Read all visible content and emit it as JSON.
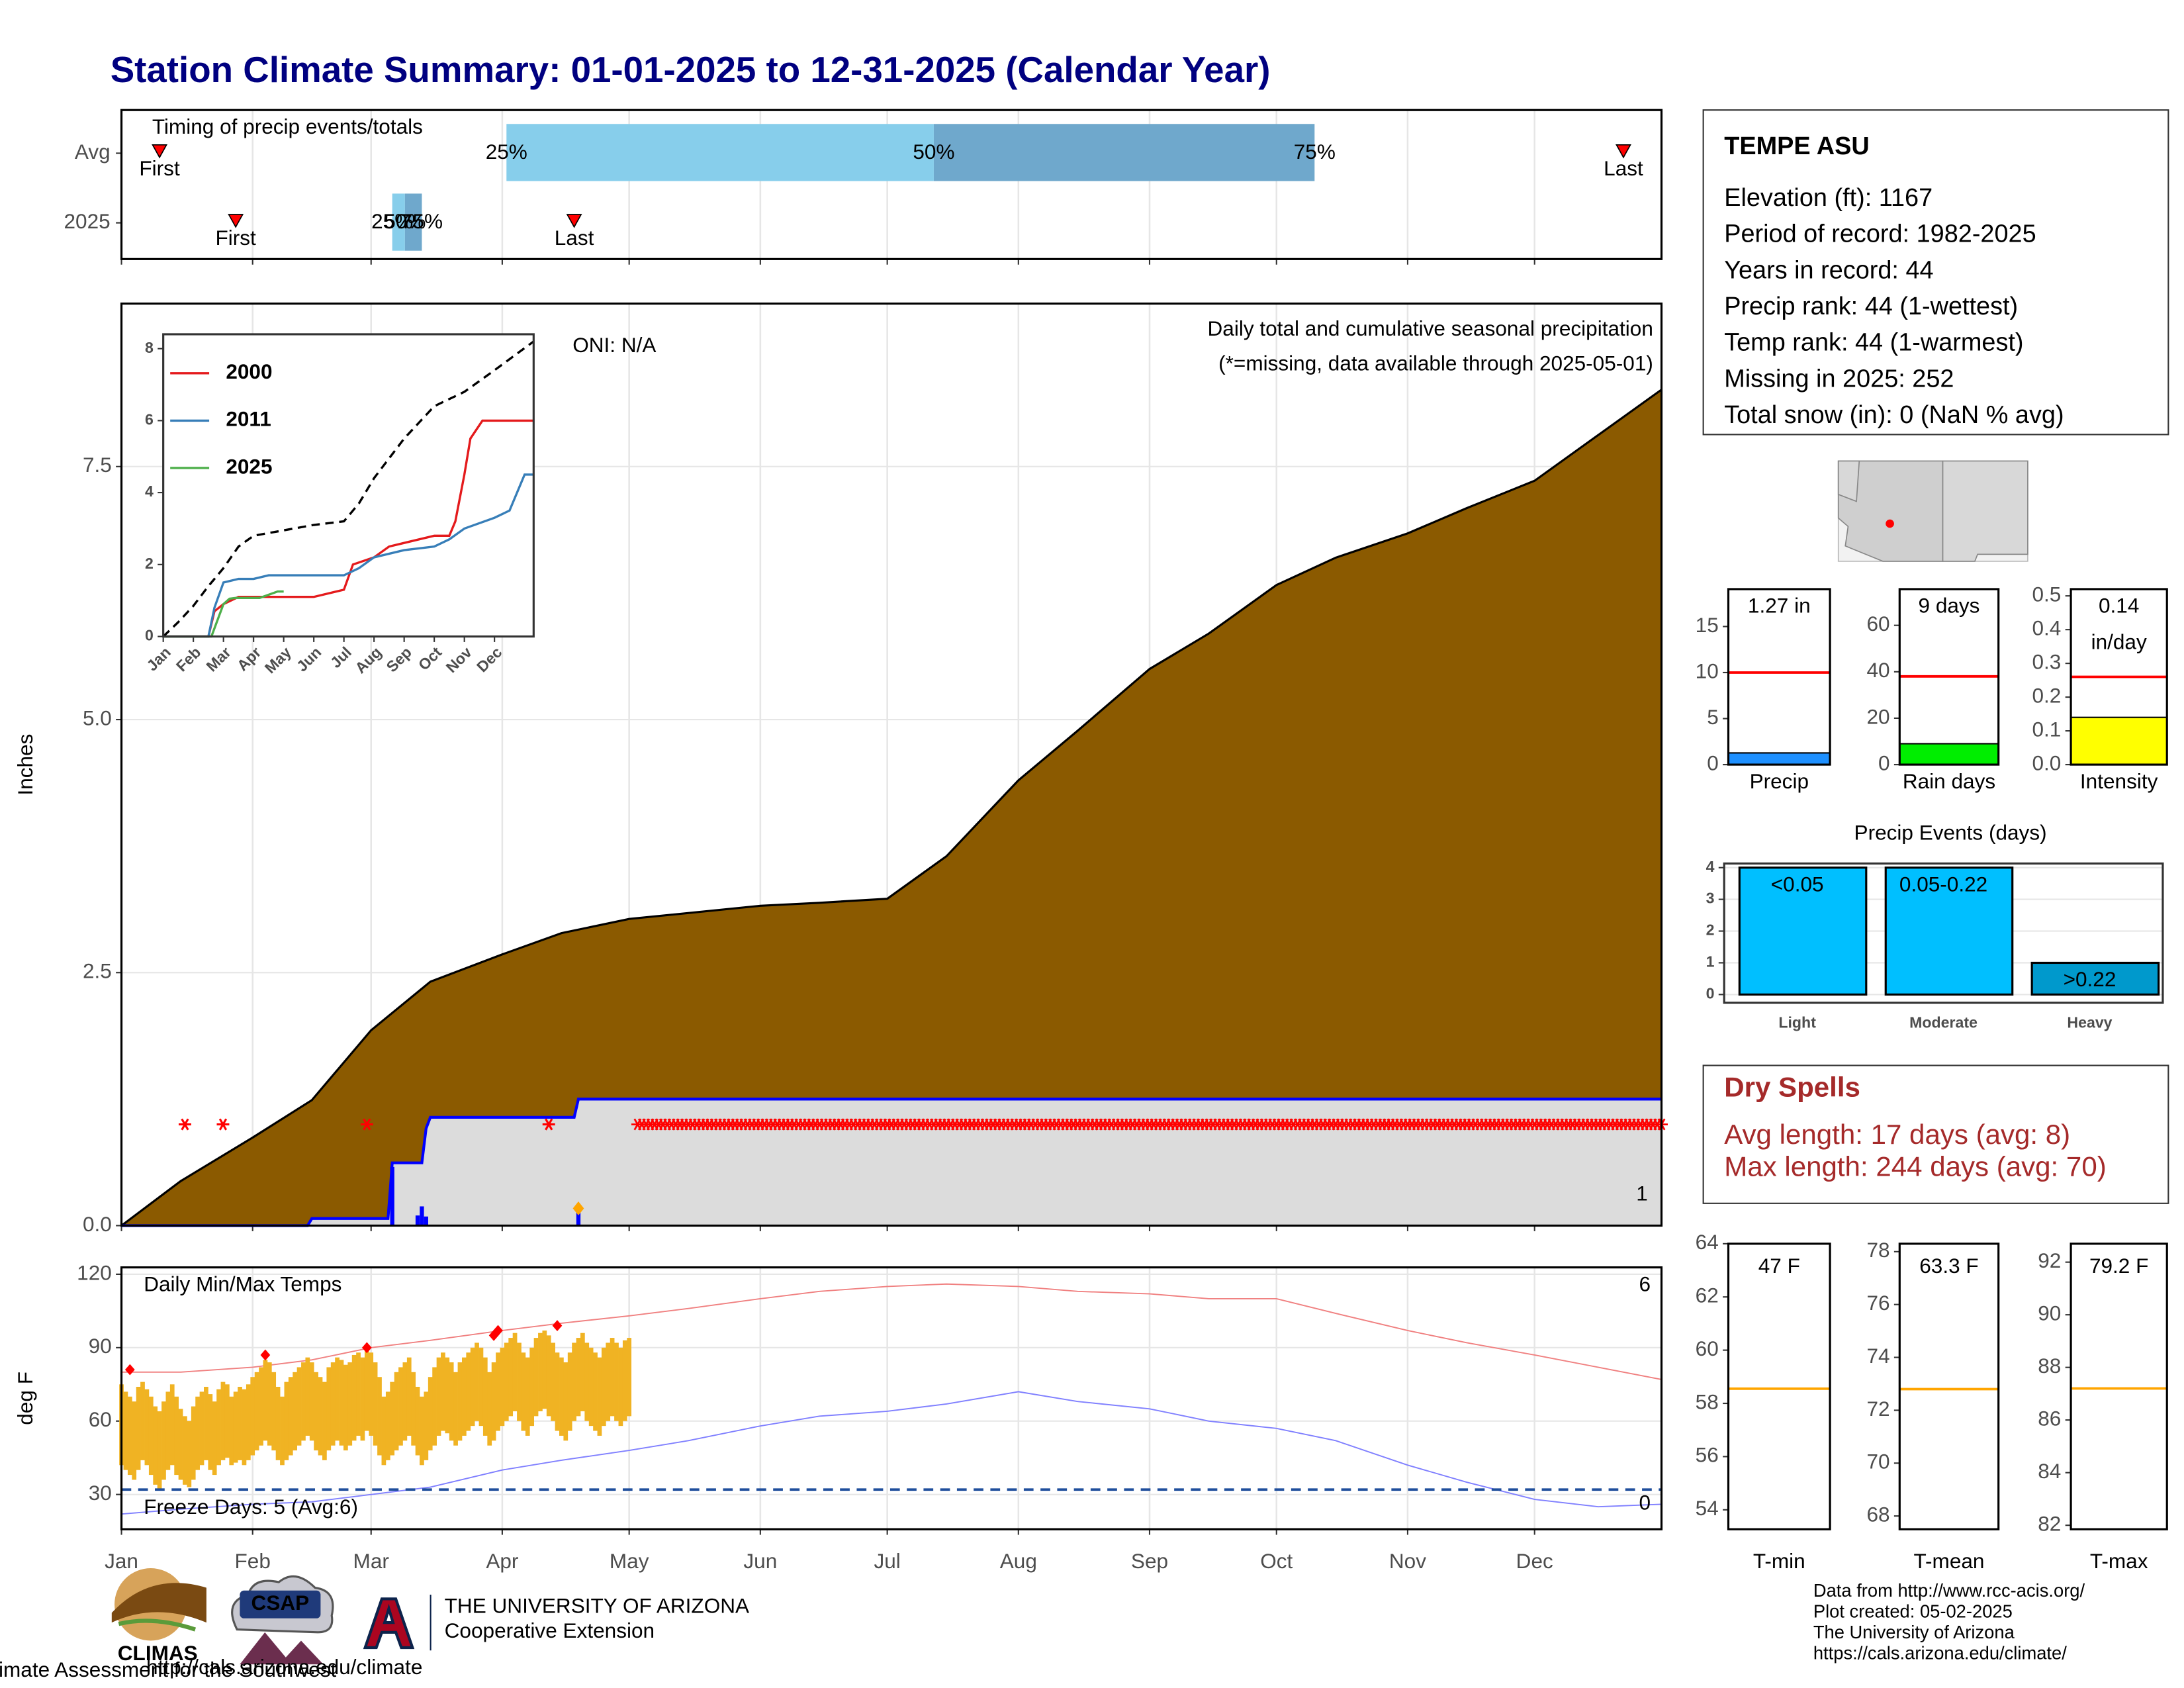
{
  "title": "Station Climate Summary: 01-01-2025 to 12-31-2025 (Calendar Year)",
  "chart_data": [
    {
      "type": "timing",
      "title": "Timing of precip events/totals",
      "categories": [
        "Avg",
        "2025"
      ],
      "xlim": [
        1,
        365
      ],
      "xticks": [
        1,
        32,
        60,
        91,
        121,
        152,
        182,
        213,
        244,
        274,
        305,
        335
      ],
      "grid": true,
      "first": [
        10,
        28
      ],
      "last": [
        356,
        108
      ],
      "first_label": "First",
      "last_label": "Last",
      "percentile_labels": [
        "25%",
        "50%",
        "75%"
      ],
      "percentiles": [
        [
          92,
          193,
          283
        ],
        [
          65,
          68,
          72
        ]
      ],
      "colors": [
        "#87ceeb",
        "#6fa8cc"
      ],
      "marker_color": "#ff0000"
    },
    {
      "type": "area",
      "title": "Daily total and cumulative seasonal precipitation",
      "subtitle": "(*=missing, data available through 2025-05-01)",
      "annotation": "ONI: N/A",
      "ylabel": "Inches",
      "xlim": [
        1,
        365
      ],
      "xticks": [
        1,
        32,
        60,
        91,
        121,
        152,
        182,
        213,
        244,
        274,
        305,
        335
      ],
      "grid": true,
      "ylim": [
        0,
        9.11
      ],
      "yticks": [
        {
          "value": 0,
          "label": "0.0"
        },
        2.5,
        {
          "value": 5,
          "label": "5.0"
        },
        7.5
      ],
      "series": [
        {
          "color": "#8b5a00",
          "x": [
            1,
            15,
            32,
            46,
            60,
            74,
            91,
            105,
            121,
            152,
            166,
            182,
            196,
            213,
            227,
            244,
            258,
            274,
            288,
            305,
            319,
            335,
            365
          ],
          "values": [
            0,
            0.44,
            0.87,
            1.24,
            1.93,
            2.41,
            2.68,
            2.89,
            3.03,
            3.16,
            3.19,
            3.23,
            3.65,
            4.4,
            4.89,
            5.5,
            5.85,
            6.33,
            6.6,
            6.84,
            7.09,
            7.36,
            8.26
          ]
        },
        {
          "color": "#0000ff",
          "fill": "#dcdcdc",
          "x": [
            1,
            45,
            46,
            64,
            65,
            72,
            73,
            74,
            108,
            109,
            365
          ],
          "values": [
            0,
            0,
            0.07,
            0.07,
            0.62,
            0.62,
            0.96,
            1.07,
            1.07,
            1.25,
            1.25
          ]
        }
      ],
      "daily": {
        "color": "#0000ff",
        "x": [
          65,
          71,
          72,
          73,
          109
        ],
        "values": [
          0.58,
          0.1,
          0.19,
          0.09,
          0.16
        ]
      },
      "missing": {
        "color": "#ff0000",
        "y": 1,
        "x": [
          16,
          25,
          59,
          102
        ],
        "range": [
          123,
          365
        ]
      },
      "diamond": {
        "color": "#ffa500",
        "x": 109,
        "y": 0.17
      },
      "count_label": "1",
      "count_color": "#ffa500"
    },
    {
      "type": "line",
      "xlim": [
        0,
        12.3
      ],
      "xticks": [
        {
          "value": 0,
          "label": "Jan"
        },
        {
          "value": 1,
          "label": "Feb"
        },
        {
          "value": 2,
          "label": "Mar"
        },
        {
          "value": 3,
          "label": "Apr"
        },
        {
          "value": 4,
          "label": "May"
        },
        {
          "value": 5,
          "label": "Jun"
        },
        {
          "value": 6,
          "label": "Jul"
        },
        {
          "value": 7,
          "label": "Aug"
        },
        {
          "value": 8,
          "label": "Sep"
        },
        {
          "value": 9,
          "label": "Oct"
        },
        {
          "value": 10,
          "label": "Nov"
        },
        {
          "value": 11,
          "label": "Dec"
        }
      ],
      "ylim": [
        0,
        8.4
      ],
      "yticks": [
        0,
        2,
        4,
        6,
        8
      ],
      "series": [
        {
          "name": "2000",
          "color": "#e41a1c",
          "x": [
            0,
            1.5,
            1.7,
            2,
            2.5,
            3,
            5,
            6,
            6.3,
            7,
            7.5,
            8,
            9,
            9.5,
            9.7,
            10,
            10.2,
            10.6,
            12.3
          ],
          "values": [
            0,
            0,
            0.7,
            0.9,
            1.1,
            1.1,
            1.1,
            1.3,
            2.0,
            2.2,
            2.5,
            2.6,
            2.8,
            2.8,
            3.2,
            4.5,
            5.5,
            6.0,
            6.0
          ]
        },
        {
          "name": "2011",
          "color": "#377eb8",
          "x": [
            0,
            1.5,
            1.7,
            2,
            2.5,
            3,
            3.5,
            6,
            6.5,
            7,
            8,
            9,
            9.5,
            10,
            11,
            11.5,
            12,
            12.3
          ],
          "values": [
            0,
            0,
            0.8,
            1.5,
            1.6,
            1.6,
            1.7,
            1.7,
            1.9,
            2.2,
            2.4,
            2.5,
            2.7,
            3.0,
            3.3,
            3.5,
            4.5,
            4.5
          ]
        },
        {
          "name": "2025",
          "color": "#4daf4a",
          "x": [
            0,
            1.6,
            2,
            2.2,
            2.4,
            3.2,
            3.8,
            4
          ],
          "values": [
            0,
            0,
            0.9,
            1.05,
            1.07,
            1.07,
            1.25,
            1.25
          ]
        },
        {
          "color": "#000000",
          "dash": true,
          "x": [
            0,
            0.5,
            1,
            1.5,
            2,
            2.5,
            3,
            4,
            5,
            6,
            6.5,
            7,
            8,
            9,
            10,
            11,
            12.3
          ],
          "values": [
            0,
            0.4,
            0.85,
            1.4,
            1.9,
            2.5,
            2.8,
            2.95,
            3.1,
            3.2,
            3.7,
            4.4,
            5.5,
            6.4,
            6.8,
            7.4,
            8.2
          ]
        }
      ]
    },
    {
      "type": "temps",
      "title": "Daily Min/Max Temps",
      "annotation": "Freeze Days: 5 (Avg:6)",
      "ylabel": "deg F",
      "xlim": [
        1,
        365
      ],
      "xticks": [
        {
          "value": 1,
          "label": "Jan"
        },
        {
          "value": 32,
          "label": "Feb"
        },
        {
          "value": 60,
          "label": "Mar"
        },
        {
          "value": 91,
          "label": "Apr"
        },
        {
          "value": 121,
          "label": "May"
        },
        {
          "value": 152,
          "label": "Jun"
        },
        {
          "value": 182,
          "label": "Jul"
        },
        {
          "value": 213,
          "label": "Aug"
        },
        {
          "value": 244,
          "label": "Sep"
        },
        {
          "value": 274,
          "label": "Oct"
        },
        {
          "value": 305,
          "label": "Nov"
        },
        {
          "value": 335,
          "label": "Dec"
        }
      ],
      "grid": true,
      "ylim": [
        15.8,
        122.8
      ],
      "yticks": [
        30,
        60,
        90,
        120
      ],
      "freeze": 32,
      "freeze_color": "#1f4e9c",
      "series": [
        {
          "color": "#f08080",
          "x": [
            1,
            15,
            32,
            46,
            60,
            74,
            91,
            105,
            121,
            135,
            152,
            166,
            182,
            196,
            213,
            227,
            244,
            258,
            274,
            288,
            305,
            319,
            335,
            350,
            365
          ],
          "values": [
            80,
            80,
            82,
            85,
            90,
            93,
            97,
            100,
            103,
            106,
            110,
            113,
            115,
            116,
            115,
            113,
            112,
            110,
            110,
            104,
            97,
            92,
            87,
            82,
            77
          ]
        },
        {
          "color": "#8080ff",
          "x": [
            1,
            15,
            32,
            46,
            60,
            74,
            91,
            105,
            121,
            135,
            152,
            166,
            182,
            196,
            213,
            227,
            244,
            258,
            274,
            288,
            305,
            319,
            335,
            350,
            365
          ],
          "values": [
            22,
            24,
            26,
            27,
            30,
            33,
            40,
            44,
            48,
            52,
            58,
            62,
            64,
            67,
            72,
            68,
            65,
            60,
            57,
            52,
            42,
            35,
            28,
            25,
            26
          ]
        }
      ],
      "daily": {
        "color": "#f0b323",
        "x": [
          1,
          2,
          3,
          4,
          5,
          6,
          7,
          8,
          9,
          10,
          11,
          12,
          13,
          14,
          15,
          16,
          17,
          18,
          19,
          20,
          21,
          22,
          23,
          24,
          25,
          26,
          27,
          28,
          29,
          30,
          31,
          32,
          33,
          34,
          35,
          36,
          37,
          38,
          39,
          40,
          41,
          42,
          43,
          44,
          45,
          46,
          47,
          48,
          49,
          50,
          51,
          52,
          53,
          54,
          55,
          56,
          57,
          58,
          59,
          60,
          61,
          62,
          63,
          64,
          65,
          66,
          67,
          68,
          69,
          70,
          71,
          72,
          73,
          74,
          75,
          76,
          77,
          78,
          79,
          80,
          81,
          82,
          83,
          84,
          85,
          86,
          87,
          88,
          89,
          90,
          91,
          92,
          93,
          94,
          95,
          96,
          97,
          98,
          99,
          100,
          101,
          102,
          103,
          104,
          105,
          106,
          107,
          108,
          109,
          110,
          111,
          112,
          113,
          114,
          115,
          116,
          117,
          118,
          119,
          120,
          121
        ],
        "max": [
          75,
          72,
          70,
          68,
          74,
          76,
          73,
          70,
          66,
          64,
          68,
          72,
          75,
          70,
          65,
          62,
          60,
          66,
          70,
          72,
          74,
          71,
          68,
          73,
          76,
          75,
          70,
          72,
          74,
          73,
          75,
          78,
          80,
          82,
          85,
          84,
          80,
          74,
          70,
          76,
          78,
          80,
          82,
          84,
          86,
          84,
          80,
          78,
          76,
          82,
          84,
          86,
          85,
          83,
          84,
          87,
          88,
          86,
          90,
          88,
          84,
          78,
          70,
          72,
          76,
          80,
          82,
          84,
          86,
          80,
          74,
          70,
          72,
          78,
          82,
          86,
          88,
          86,
          84,
          80,
          84,
          86,
          88,
          90,
          92,
          90,
          86,
          80,
          84,
          88,
          90,
          92,
          94,
          96,
          92,
          88,
          86,
          90,
          94,
          96,
          97,
          95,
          92,
          88,
          86,
          84,
          88,
          92,
          94,
          96,
          92,
          90,
          88,
          86,
          90,
          92,
          94,
          92,
          90,
          93,
          94
        ],
        "min": [
          42,
          40,
          38,
          36,
          40,
          44,
          42,
          38,
          34,
          32,
          36,
          40,
          42,
          38,
          36,
          34,
          33,
          36,
          40,
          42,
          44,
          40,
          38,
          42,
          44,
          45,
          42,
          43,
          44,
          42,
          44,
          46,
          48,
          50,
          52,
          50,
          48,
          44,
          42,
          44,
          46,
          48,
          50,
          52,
          54,
          52,
          48,
          46,
          44,
          48,
          50,
          52,
          50,
          48,
          50,
          52,
          54,
          52,
          56,
          54,
          50,
          46,
          42,
          44,
          46,
          48,
          50,
          52,
          54,
          50,
          46,
          42,
          44,
          48,
          50,
          54,
          56,
          55,
          52,
          50,
          52,
          54,
          56,
          58,
          60,
          58,
          54,
          50,
          52,
          56,
          58,
          60,
          62,
          64,
          60,
          56,
          54,
          58,
          62,
          64,
          65,
          62,
          60,
          56,
          54,
          52,
          56,
          60,
          62,
          64,
          60,
          58,
          56,
          54,
          58,
          60,
          62,
          60,
          58,
          60,
          62
        ]
      },
      "records": {
        "color": "#ff0000",
        "x": [
          3,
          35,
          59,
          89,
          90,
          104
        ],
        "values": [
          81,
          87,
          90,
          95,
          97,
          99
        ]
      },
      "count_high": "6",
      "count_high_color": "#ff0000",
      "count_low": "0",
      "count_low_color": "#0000ff"
    },
    {
      "type": "summary",
      "category": "Precip",
      "values": [
        1.27
      ],
      "value_labels": [
        "1.27 in"
      ],
      "avg": 10,
      "avg_color": "#ff0000",
      "color": "#1e90ff",
      "ylim": [
        0,
        19.06
      ],
      "yticks": [
        0,
        5,
        10,
        15
      ]
    },
    {
      "type": "summary",
      "category": "Rain days",
      "values": [
        9
      ],
      "value_labels": [
        "9 days"
      ],
      "avg": 38,
      "avg_color": "#ff0000",
      "color": "#00ee00",
      "ylim": [
        0,
        75.6
      ],
      "yticks": [
        0,
        20,
        40,
        60
      ]
    },
    {
      "type": "summary",
      "category": "Intensity",
      "values": [
        0.14
      ],
      "value_labels": [
        "0.14"
      ],
      "unit": "in/day",
      "avg": 0.26,
      "avg_color": "#ff0000",
      "color": "#ffff00",
      "ylim": [
        0,
        0.52
      ],
      "yticks": [
        {
          "value": 0,
          "label": "0.0"
        },
        0.1,
        0.2,
        0.3,
        0.4,
        0.5
      ]
    },
    {
      "type": "events",
      "title": "Precip Events (days)",
      "categories": [
        "Light",
        "Moderate",
        "Heavy"
      ],
      "values": [
        4,
        4,
        1
      ],
      "bin_labels": [
        "<0.05",
        "0.05-0.22",
        ">0.22"
      ],
      "colors": [
        "#00bfff",
        "#00bfff",
        "#0099cc"
      ],
      "ylim": [
        -0.26,
        4.13
      ],
      "yticks": [
        0,
        1,
        2,
        3,
        4
      ],
      "grid": true
    },
    {
      "type": "summary",
      "category": "T-min",
      "values": [
        47
      ],
      "value_labels": [
        "47 F"
      ],
      "avg": 58.55,
      "avg_color": "#ffa500",
      "color": "#ffa500",
      "ylim": [
        53.27,
        64
      ],
      "yticks": [
        54,
        56,
        58,
        60,
        62,
        64
      ]
    },
    {
      "type": "summary",
      "category": "T-mean",
      "values": [
        63.3
      ],
      "value_labels": [
        "63.3 F"
      ],
      "avg": 72.8,
      "avg_color": "#ffa500",
      "color": "#ffa500",
      "ylim": [
        67.5,
        78.3
      ],
      "yticks": [
        68,
        70,
        72,
        74,
        76,
        78
      ]
    },
    {
      "type": "summary",
      "category": "T-max",
      "values": [
        79.2
      ],
      "value_labels": [
        "79.2 F"
      ],
      "avg": 87.2,
      "avg_color": "#ffa500",
      "color": "#ffa500",
      "ylim": [
        81.85,
        92.7
      ],
      "yticks": [
        82,
        84,
        86,
        88,
        90,
        92
      ]
    }
  ],
  "station": {
    "name": "TEMPE ASU",
    "lines": [
      "Elevation (ft): 1167",
      "Period of record: 1982-2025",
      "Years in record: 44",
      "Precip rank: 44 (1-wettest)",
      "Temp rank: 44 (1-warmest)",
      "Missing in 2025: 252",
      "Total snow (in): 0 (NaN % avg)"
    ]
  },
  "dry_spells": {
    "title": "Dry Spells",
    "lines": [
      "Avg length: 17 days (avg: 8)",
      "Max length: 244 days (avg: 70)"
    ]
  },
  "logos": {
    "climas": "CLIMAS",
    "climas_tagline": "Climate Assessment for the Southwest",
    "csap": "CSAP",
    "csap_url": "http://cals.arizona.edu/climate",
    "ua_small": "THE UNIVERSITY OF ARIZONA",
    "ua": "Cooperative Extension"
  },
  "footer": {
    "lines": [
      "Data from http://www.rcc-acis.org/",
      "Plot created: 05-02-2025",
      "The University of Arizona",
      "https://cals.arizona.edu/climate/"
    ]
  }
}
